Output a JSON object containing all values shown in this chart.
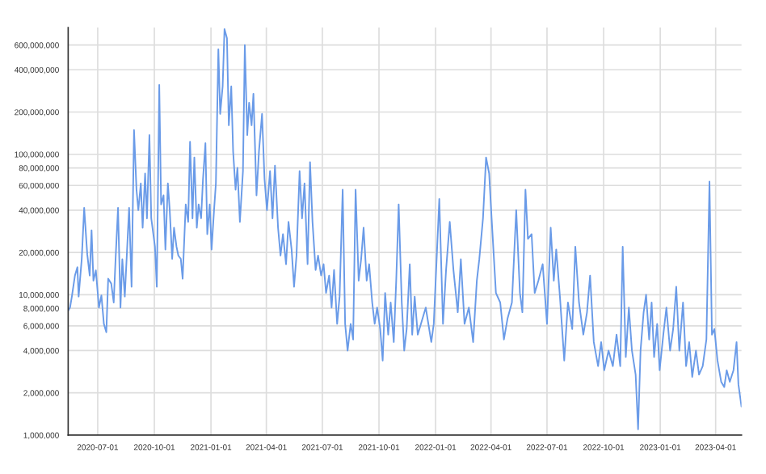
{
  "chart_data": {
    "type": "line",
    "log": "y",
    "grid": true,
    "marker": "none",
    "line_style": "solid",
    "xlim": [
      "2020-05-14",
      "2023-05-13"
    ],
    "xticks": [
      {
        "value": "2020-07-01",
        "label": "2020-07-01"
      },
      {
        "value": "2020-10-01",
        "label": "2020-10-01"
      },
      {
        "value": "2021-01-01",
        "label": "2021-01-01"
      },
      {
        "value": "2021-04-01",
        "label": "2021-04-01"
      },
      {
        "value": "2021-07-01",
        "label": "2021-07-01"
      },
      {
        "value": "2021-10-01",
        "label": "2021-10-01"
      },
      {
        "value": "2022-01-01",
        "label": "2022-01-01"
      },
      {
        "value": "2022-04-01",
        "label": "2022-04-01"
      },
      {
        "value": "2022-07-01",
        "label": "2022-07-01"
      },
      {
        "value": "2022-10-01",
        "label": "2022-10-01"
      },
      {
        "value": "2023-01-01",
        "label": "2023-01-01"
      },
      {
        "value": "2023-04-01",
        "label": "2023-04-01"
      }
    ],
    "ylim": [
      1000000,
      800000000
    ],
    "yticks": [
      {
        "value": 1000000,
        "label": "1,000,000"
      },
      {
        "value": 2000000,
        "label": "2,000,000"
      },
      {
        "value": 4000000,
        "label": "4,000,000"
      },
      {
        "value": 6000000,
        "label": "6,000,000"
      },
      {
        "value": 8000000,
        "label": "8,000,000"
      },
      {
        "value": 10000000,
        "label": "10,000,000"
      },
      {
        "value": 20000000,
        "label": "20,000,000"
      },
      {
        "value": 40000000,
        "label": "40,000,000"
      },
      {
        "value": 60000000,
        "label": "60,000,000"
      },
      {
        "value": 80000000,
        "label": "80,000,000"
      },
      {
        "value": 100000000,
        "label": "100,000,000"
      },
      {
        "value": 200000000,
        "label": "200,000,000"
      },
      {
        "value": 400000000,
        "label": "400,000,000"
      },
      {
        "value": 600000000,
        "label": "600,000,000"
      }
    ],
    "series": [
      {
        "color": "#6a9be8",
        "x": [
          "2020-05-14",
          "2020-05-17",
          "2020-05-20",
          "2020-05-25",
          "2020-05-29",
          "2020-05-31",
          "2020-06-05",
          "2020-06-09",
          "2020-06-14",
          "2020-06-18",
          "2020-06-21",
          "2020-06-24",
          "2020-06-28",
          "2020-07-03",
          "2020-07-07",
          "2020-07-11",
          "2020-07-15",
          "2020-07-18",
          "2020-07-23",
          "2020-07-27",
          "2020-07-30",
          "2020-08-03",
          "2020-08-07",
          "2020-08-10",
          "2020-08-14",
          "2020-08-21",
          "2020-08-25",
          "2020-08-29",
          "2020-09-02",
          "2020-09-05",
          "2020-09-09",
          "2020-09-12",
          "2020-09-16",
          "2020-09-19",
          "2020-09-23",
          "2020-09-26",
          "2020-10-02",
          "2020-10-05",
          "2020-10-09",
          "2020-10-12",
          "2020-10-16",
          "2020-10-19",
          "2020-10-23",
          "2020-10-26",
          "2020-10-30",
          "2020-11-02",
          "2020-11-06",
          "2020-11-09",
          "2020-11-13",
          "2020-11-16",
          "2020-11-21",
          "2020-11-25",
          "2020-11-28",
          "2020-12-02",
          "2020-12-05",
          "2020-12-09",
          "2020-12-12",
          "2020-12-16",
          "2020-12-19",
          "2020-12-23",
          "2020-12-26",
          "2020-12-30",
          "2021-01-02",
          "2021-01-06",
          "2021-01-09",
          "2021-01-13",
          "2021-01-16",
          "2021-01-20",
          "2021-01-23",
          "2021-01-27",
          "2021-01-30",
          "2021-02-03",
          "2021-02-06",
          "2021-02-10",
          "2021-02-13",
          "2021-02-17",
          "2021-02-22",
          "2021-02-25",
          "2021-03-01",
          "2021-03-04",
          "2021-03-08",
          "2021-03-11",
          "2021-03-16",
          "2021-03-20",
          "2021-03-25",
          "2021-03-29",
          "2021-04-02",
          "2021-04-07",
          "2021-04-11",
          "2021-04-15",
          "2021-04-20",
          "2021-04-24",
          "2021-04-28",
          "2021-05-03",
          "2021-05-07",
          "2021-05-12",
          "2021-05-16",
          "2021-05-20",
          "2021-05-25",
          "2021-05-29",
          "2021-06-02",
          "2021-06-07",
          "2021-06-11",
          "2021-06-15",
          "2021-06-20",
          "2021-06-24",
          "2021-06-29",
          "2021-07-03",
          "2021-07-07",
          "2021-07-12",
          "2021-07-16",
          "2021-07-20",
          "2021-07-25",
          "2021-07-29",
          "2021-08-03",
          "2021-08-07",
          "2021-08-11",
          "2021-08-16",
          "2021-08-20",
          "2021-08-24",
          "2021-08-29",
          "2021-09-02",
          "2021-09-06",
          "2021-09-11",
          "2021-09-15",
          "2021-09-20",
          "2021-09-24",
          "2021-09-28",
          "2021-10-03",
          "2021-10-07",
          "2021-10-11",
          "2021-10-16",
          "2021-10-20",
          "2021-10-25",
          "2021-10-29",
          "2021-11-02",
          "2021-11-07",
          "2021-11-11",
          "2021-11-15",
          "2021-11-20",
          "2021-11-24",
          "2021-11-28",
          "2021-12-03",
          "2021-12-16",
          "2021-12-25",
          "2021-12-29",
          "2022-01-07",
          "2022-01-13",
          "2022-01-18",
          "2022-01-24",
          "2022-01-30",
          "2022-02-06",
          "2022-02-11",
          "2022-02-17",
          "2022-02-24",
          "2022-03-03",
          "2022-03-09",
          "2022-03-13",
          "2022-03-19",
          "2022-03-24",
          "2022-03-29",
          "2022-04-02",
          "2022-04-09",
          "2022-04-16",
          "2022-04-22",
          "2022-04-28",
          "2022-05-05",
          "2022-05-12",
          "2022-05-18",
          "2022-05-22",
          "2022-05-27",
          "2022-05-31",
          "2022-06-06",
          "2022-06-11",
          "2022-06-17",
          "2022-06-24",
          "2022-07-01",
          "2022-07-07",
          "2022-07-12",
          "2022-07-16",
          "2022-07-22",
          "2022-07-29",
          "2022-08-04",
          "2022-08-11",
          "2022-08-16",
          "2022-08-22",
          "2022-08-29",
          "2022-09-04",
          "2022-09-09",
          "2022-09-15",
          "2022-09-22",
          "2022-09-27",
          "2022-10-02",
          "2022-10-09",
          "2022-10-16",
          "2022-10-22",
          "2022-10-28",
          "2022-11-01",
          "2022-11-06",
          "2022-11-11",
          "2022-11-16",
          "2022-11-22",
          "2022-11-26",
          "2022-11-30",
          "2022-12-05",
          "2022-12-09",
          "2022-12-14",
          "2022-12-18",
          "2022-12-22",
          "2022-12-27",
          "2022-12-31",
          "2023-01-06",
          "2023-01-11",
          "2023-01-17",
          "2023-01-22",
          "2023-01-27",
          "2023-02-01",
          "2023-02-07",
          "2023-02-12",
          "2023-02-17",
          "2023-02-22",
          "2023-02-28",
          "2023-03-05",
          "2023-03-11",
          "2023-03-17",
          "2023-03-22",
          "2023-03-26",
          "2023-03-30",
          "2023-04-04",
          "2023-04-10",
          "2023-04-15",
          "2023-04-19",
          "2023-04-24",
          "2023-04-30",
          "2023-05-05",
          "2023-05-08",
          "2023-05-13"
        ],
        "values": [
          7700000,
          8100000,
          9700000,
          13700000,
          15700000,
          9700000,
          17900000,
          41600000,
          19400000,
          13700000,
          28800000,
          12600000,
          14900000,
          8100000,
          9900000,
          6200000,
          5400000,
          13000000,
          12000000,
          8800000,
          17900000,
          41600000,
          8100000,
          17900000,
          9700000,
          41600000,
          11400000,
          149000000,
          56000000,
          40000000,
          62000000,
          30000000,
          73000000,
          35000000,
          137000000,
          35000000,
          22000000,
          11400000,
          312000000,
          44000000,
          51000000,
          21000000,
          62000000,
          40000000,
          18000000,
          30000000,
          22000000,
          19000000,
          18000000,
          13000000,
          44000000,
          33000000,
          123000000,
          35000000,
          95000000,
          30000000,
          44000000,
          35000000,
          66000000,
          120000000,
          27000000,
          44000000,
          21000000,
          40000000,
          62000000,
          560000000,
          194000000,
          305000000,
          780000000,
          670000000,
          161000000,
          305000000,
          105000000,
          56000000,
          80000000,
          33000000,
          76000000,
          600000000,
          137000000,
          233000000,
          161000000,
          270000000,
          51000000,
          105000000,
          194000000,
          67000000,
          40000000,
          76000000,
          35000000,
          83000000,
          30000000,
          19000000,
          27000000,
          16500000,
          33000000,
          21000000,
          11400000,
          19000000,
          76000000,
          35000000,
          62000000,
          16500000,
          88000000,
          33000000,
          15000000,
          19000000,
          13700000,
          16500000,
          10300000,
          13700000,
          8100000,
          15000000,
          6200000,
          9700000,
          56000000,
          6200000,
          4000000,
          6200000,
          4800000,
          56000000,
          12600000,
          17900000,
          30000000,
          12600000,
          16500000,
          8800000,
          6200000,
          8100000,
          5700000,
          3400000,
          10300000,
          5200000,
          8800000,
          4600000,
          12600000,
          44000000,
          8800000,
          4000000,
          5700000,
          16500000,
          5200000,
          9700000,
          5200000,
          8100000,
          4600000,
          6200000,
          48000000,
          6200000,
          15000000,
          33000000,
          15000000,
          7500000,
          17900000,
          6200000,
          8100000,
          4600000,
          12600000,
          17900000,
          35000000,
          95000000,
          73000000,
          35000000,
          10300000,
          8800000,
          4800000,
          6800000,
          8800000,
          40000000,
          10300000,
          7500000,
          56000000,
          25000000,
          27000000,
          10300000,
          12600000,
          16500000,
          6200000,
          30000000,
          12600000,
          21000000,
          9700000,
          3400000,
          8800000,
          5700000,
          22000000,
          8800000,
          5200000,
          7500000,
          13700000,
          4600000,
          3100000,
          4600000,
          2900000,
          4000000,
          3100000,
          5200000,
          3100000,
          22000000,
          3600000,
          8100000,
          4000000,
          2700000,
          1100000,
          4000000,
          7500000,
          10000000,
          4800000,
          8800000,
          3600000,
          6200000,
          2900000,
          5200000,
          8100000,
          4000000,
          5700000,
          11400000,
          4000000,
          8800000,
          3100000,
          4600000,
          2600000,
          4000000,
          2700000,
          3100000,
          4800000,
          64000000,
          5200000,
          5700000,
          3400000,
          2400000,
          2200000,
          2900000,
          2400000,
          2900000,
          4600000,
          2300000,
          1600000
        ]
      }
    ]
  }
}
